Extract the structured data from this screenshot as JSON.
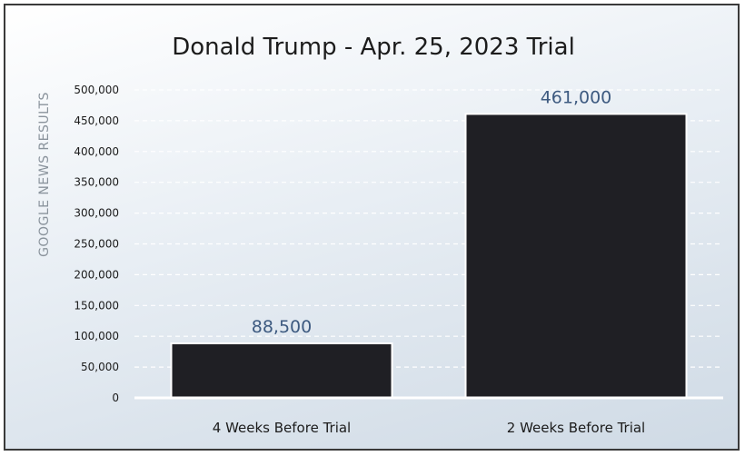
{
  "chart_data": {
    "type": "bar",
    "title": "Donald Trump - Apr. 25, 2023 Trial",
    "ylabel": "GOOGLE NEWS RESULTS",
    "xlabel": "",
    "categories": [
      "4 Weeks Before Trial",
      "2 Weeks Before Trial"
    ],
    "values": [
      88500,
      461000
    ],
    "data_labels": [
      "88,500",
      "461,000"
    ],
    "ylim": [
      0,
      500000
    ],
    "yticks": [
      0,
      50000,
      100000,
      150000,
      200000,
      250000,
      300000,
      350000,
      400000,
      450000,
      500000
    ],
    "ytick_labels": [
      "0",
      "50,000",
      "100,000",
      "150,000",
      "200,000",
      "250,000",
      "300,000",
      "350,000",
      "400,000",
      "450,000",
      "500,000"
    ],
    "grid": true,
    "legend": "none",
    "colors": {
      "bar": "#1f1f24",
      "bar_outline": "#ffffff",
      "data_label": "#3d5a80",
      "gridline": "#ffffff"
    }
  }
}
